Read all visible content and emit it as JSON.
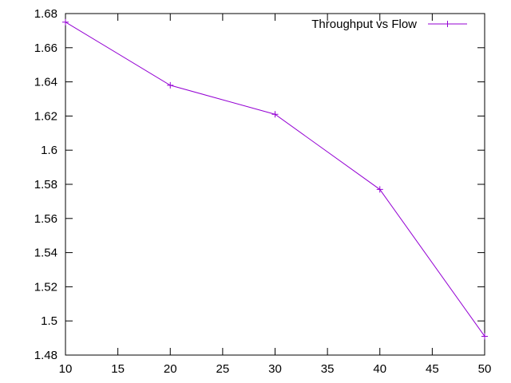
{
  "chart_data": {
    "type": "line",
    "title": "",
    "xlabel": "",
    "ylabel": "",
    "x": [
      10,
      20,
      30,
      40,
      50
    ],
    "series": [
      {
        "name": "Throughput vs Flow",
        "values": [
          1.675,
          1.638,
          1.621,
          1.577,
          1.491
        ],
        "color": "#9400d3",
        "marker": "plus"
      }
    ],
    "xlim": [
      10,
      50
    ],
    "ylim": [
      1.48,
      1.68
    ],
    "xticks": [
      10,
      15,
      20,
      25,
      30,
      35,
      40,
      45,
      50
    ],
    "yticks": [
      1.48,
      1.5,
      1.52,
      1.54,
      1.56,
      1.58,
      1.6,
      1.62,
      1.64,
      1.66,
      1.68
    ],
    "xtick_labels": [
      "10",
      "15",
      "20",
      "25",
      "30",
      "35",
      "40",
      "45",
      "50"
    ],
    "ytick_labels": [
      "1.48",
      "1.5",
      "1.52",
      "1.54",
      "1.56",
      "1.58",
      "1.6",
      "1.62",
      "1.64",
      "1.66",
      "1.68"
    ],
    "grid": false,
    "legend_position": "top-right"
  }
}
